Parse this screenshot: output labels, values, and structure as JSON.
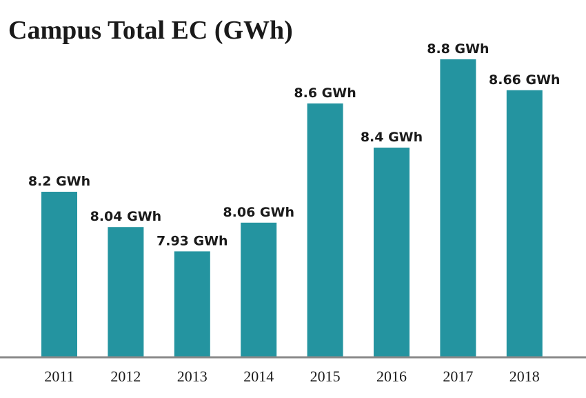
{
  "chart_data": {
    "type": "bar",
    "title": "Campus Total EC (GWh)",
    "xlabel": "",
    "ylabel": "",
    "categories": [
      "2011",
      "2012",
      "2013",
      "2014",
      "2015",
      "2016",
      "2017",
      "2018"
    ],
    "values": [
      8.2,
      8.04,
      7.93,
      8.06,
      8.6,
      8.4,
      8.8,
      8.66
    ],
    "data_labels": [
      "8.2 GWh",
      "8.04 GWh",
      "7.93 GWh",
      "8.06 GWh",
      "8.6 GWh",
      "8.4 GWh",
      "8.8 GWh",
      "8.66 GWh"
    ],
    "ylim": [
      7.45,
      8.8
    ],
    "grid": false,
    "legend": "none",
    "bar_color": "#2494a0",
    "axis_color": "#8a8a8a"
  }
}
